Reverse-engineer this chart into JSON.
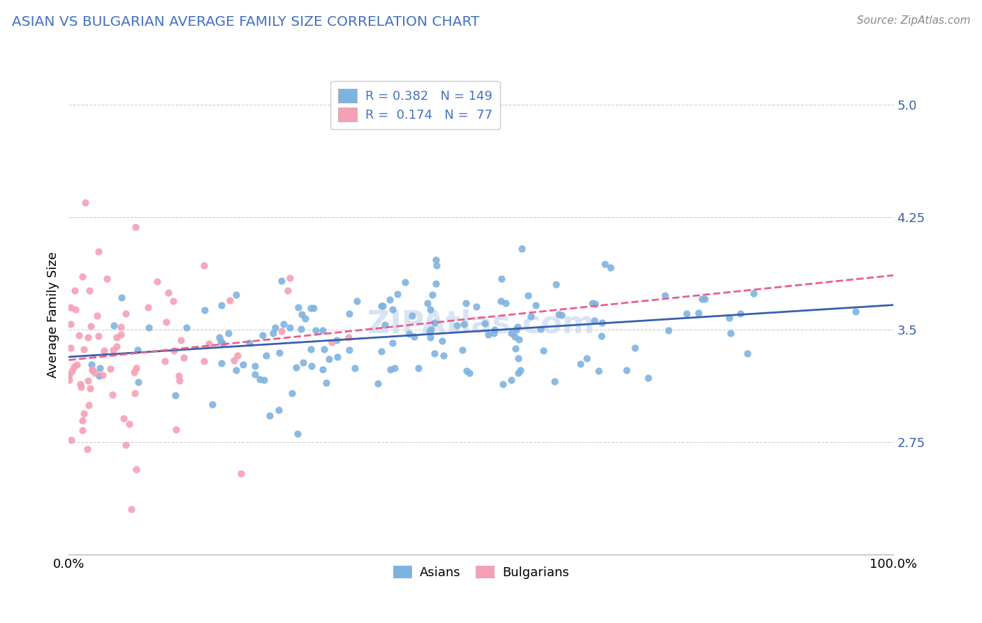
{
  "title": "ASIAN VS BULGARIAN AVERAGE FAMILY SIZE CORRELATION CHART",
  "source": "Source: ZipAtlas.com",
  "ylabel": "Average Family Size",
  "yticks": [
    2.75,
    3.5,
    4.25,
    5.0
  ],
  "xlim": [
    0.0,
    100.0
  ],
  "ylim": [
    2.0,
    5.2
  ],
  "asian_R": 0.382,
  "asian_N": 149,
  "bulgarian_R": 0.174,
  "bulgarian_N": 77,
  "asian_color": "#7eb3e0",
  "bulgarian_color": "#f4a0b5",
  "asian_line_color": "#3a5faa",
  "bulgarian_line_color": "#e8608a",
  "title_color": "#4472c4",
  "legend_R_N_color": "#4472c4",
  "background_color": "#ffffff",
  "grid_color": "#cccccc",
  "watermark": "ZIPAtlas.com",
  "watermark_color": "#c8d8f0"
}
